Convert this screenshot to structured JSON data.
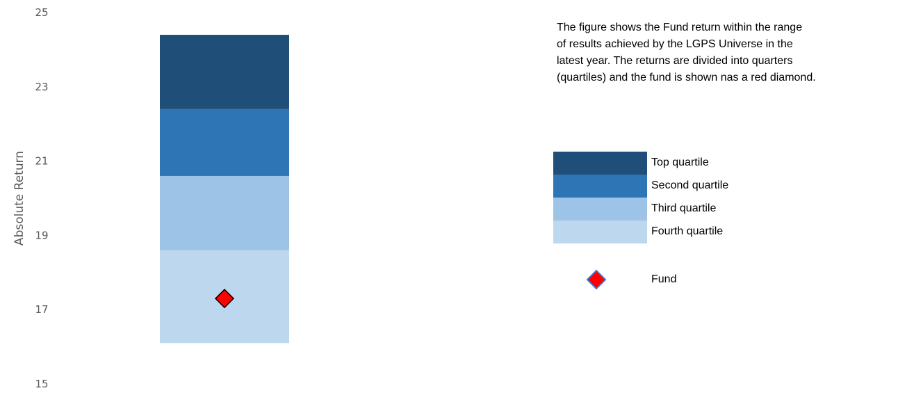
{
  "chart_data": {
    "type": "bar",
    "ylabel": "Absolute Return",
    "ylim": [
      15,
      25
    ],
    "yticks": [
      15,
      17,
      19,
      21,
      23,
      25
    ],
    "grid": false,
    "legend_position": "right",
    "quartiles": [
      {
        "name": "Fourth quartile",
        "from": 16.1,
        "to": 18.6,
        "color": "#BDD7EE"
      },
      {
        "name": "Third quartile",
        "from": 18.6,
        "to": 20.6,
        "color": "#9DC3E6"
      },
      {
        "name": "Second quartile",
        "from": 20.6,
        "to": 22.4,
        "color": "#2E75B6"
      },
      {
        "name": "Top quartile",
        "from": 22.4,
        "to": 24.4,
        "color": "#1F4E79"
      }
    ],
    "fund": {
      "name": "Fund",
      "value": 17.3,
      "color": "#FF0000"
    }
  },
  "description": [
    "The figure shows the Fund return within the range",
    "of results achieved by the LGPS Universe in the",
    "latest year. The returns are divided into quarters",
    "(quartiles) and the fund is shown nas a red diamond."
  ],
  "legend": {
    "items": [
      {
        "label": "Top quartile",
        "color": "#1F4E79"
      },
      {
        "label": "Second quartile",
        "color": "#2E75B6"
      },
      {
        "label": "Third quartile",
        "color": "#9DC3E6"
      },
      {
        "label": "Fourth quartile",
        "color": "#BDD7EE"
      }
    ],
    "fund_label": "Fund"
  }
}
